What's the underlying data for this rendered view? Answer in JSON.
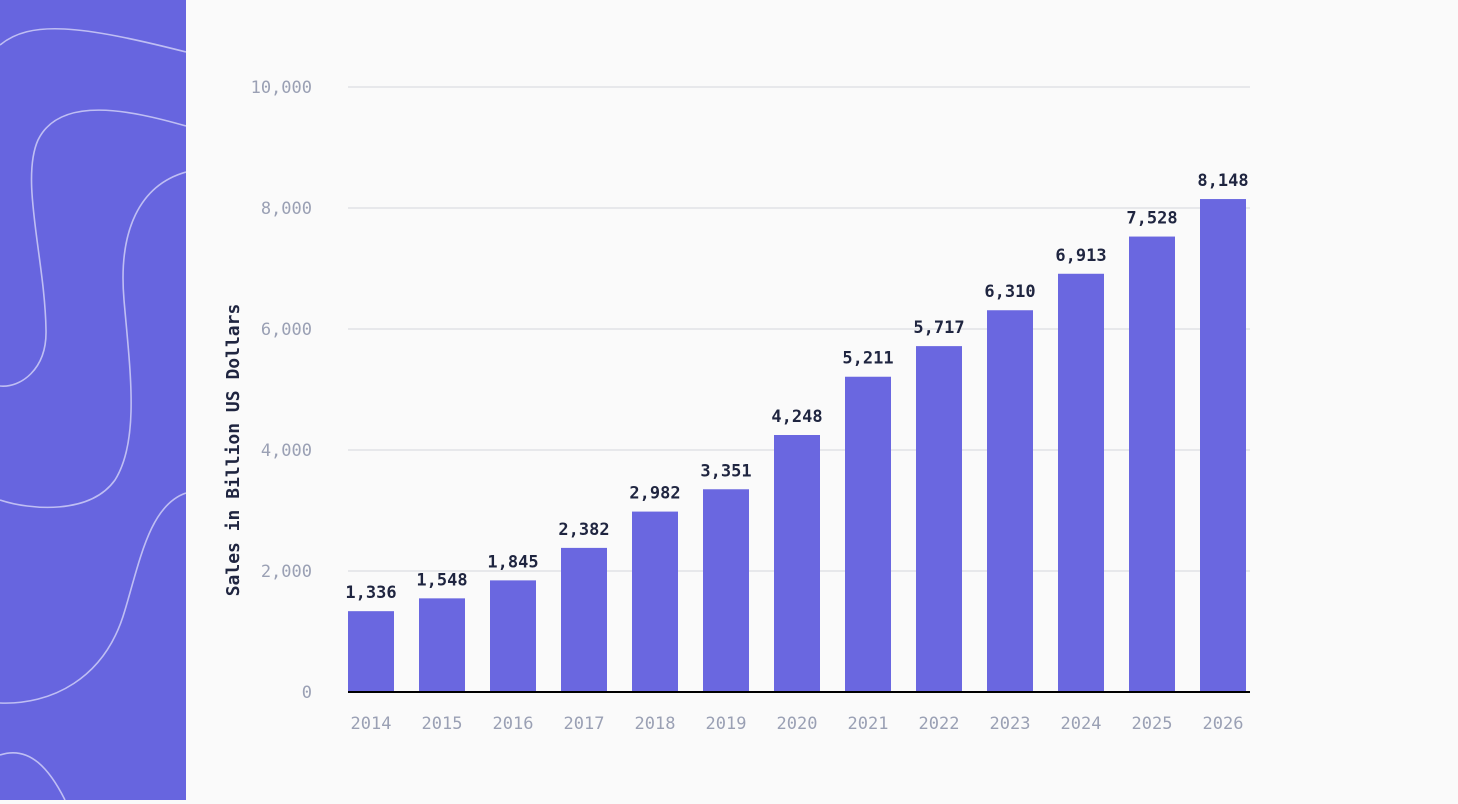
{
  "chart_data": {
    "type": "bar",
    "title": "",
    "xlabel": "",
    "ylabel": "Sales in Billion US Dollars",
    "categories": [
      "2014",
      "2015",
      "2016",
      "2017",
      "2018",
      "2019",
      "2020",
      "2021",
      "2022",
      "2023",
      "2024",
      "2025",
      "2026"
    ],
    "values": [
      1336,
      1548,
      1845,
      2382,
      2982,
      3351,
      4248,
      5211,
      5717,
      6310,
      6913,
      7528,
      8148
    ],
    "data_labels": [
      "1,336",
      "1,548",
      "1,845",
      "2,382",
      "2,982",
      "3,351",
      "4,248",
      "5,211",
      "5,717",
      "6,310",
      "6,913",
      "7,528",
      "8,148"
    ],
    "ylim": [
      0,
      10000
    ],
    "yticks": [
      0,
      2000,
      4000,
      6000,
      8000,
      10000
    ],
    "ytick_labels": [
      "0",
      "2,000",
      "4,000",
      "6,000",
      "8,000",
      "10,000"
    ],
    "grid": true,
    "legend": "none",
    "colors": {
      "bar": "#6a67e0",
      "panel": "#6765df",
      "background": "#fafafa"
    }
  }
}
